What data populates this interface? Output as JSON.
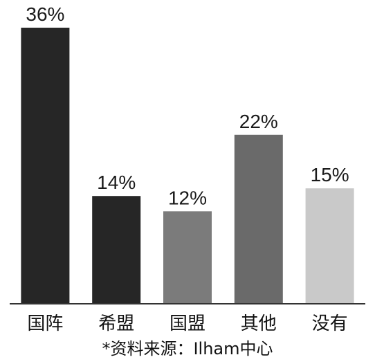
{
  "chart_data": {
    "type": "bar",
    "categories": [
      "国阵",
      "希盟",
      "国盟",
      "其他",
      "没有"
    ],
    "values": [
      36,
      14,
      12,
      22,
      15
    ],
    "value_labels": [
      "36%",
      "14%",
      "12%",
      "22%",
      "15%"
    ],
    "bar_colors": [
      "#262626",
      "#262626",
      "#7b7b7b",
      "#6a6a6a",
      "#c9c9c9"
    ],
    "ylim": [
      0,
      36
    ],
    "grid": false,
    "legend": "none",
    "source_note": "*资料来源：Ilham中心"
  }
}
